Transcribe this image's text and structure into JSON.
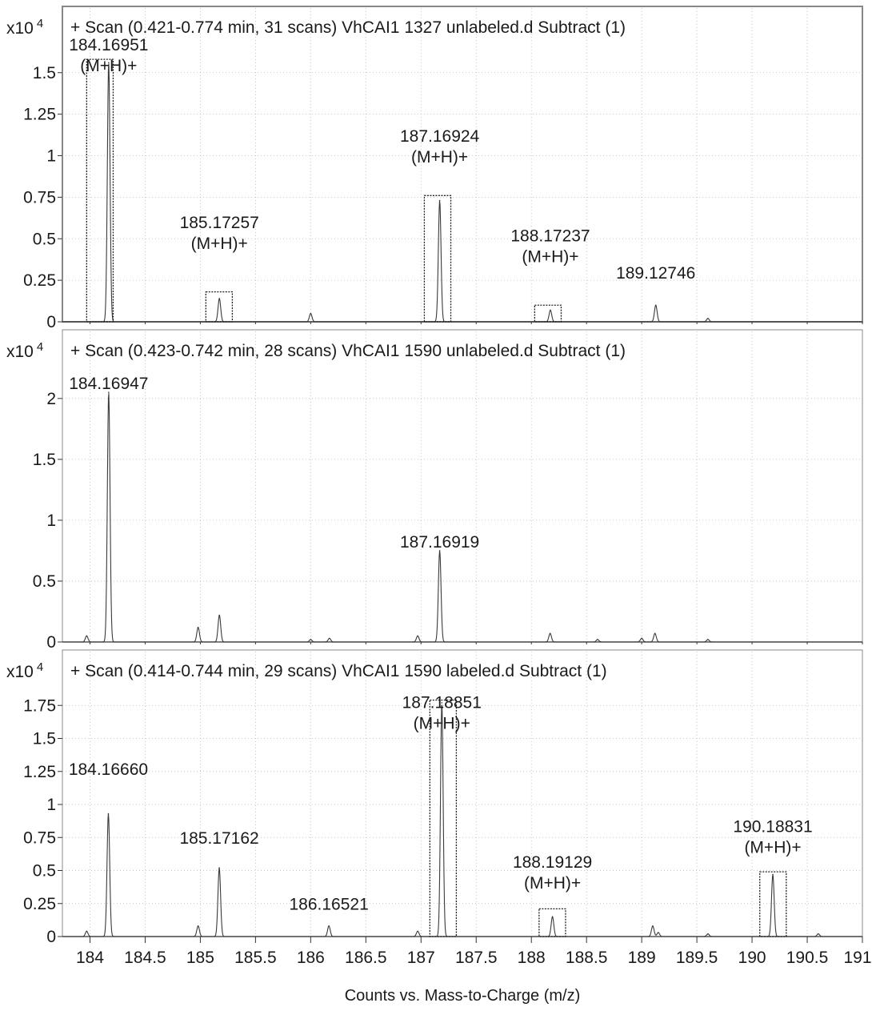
{
  "chart_data": {
    "type": "line",
    "xlabel": "Counts vs. Mass-to-Charge (m/z)",
    "xlim": [
      183.75,
      191.0
    ],
    "x_ticks": [
      184,
      184.5,
      185,
      185.5,
      186,
      186.5,
      187,
      187.5,
      188,
      188.5,
      189,
      189.5,
      190,
      190.5,
      191
    ],
    "x_tick_labels": [
      "184",
      "184.5",
      "185",
      "185.5",
      "186",
      "186.5",
      "187",
      "187.5",
      "188",
      "188.5",
      "189",
      "189.5",
      "190",
      "190.5",
      "191"
    ],
    "grid": true,
    "panels": [
      {
        "scale_label": "x10",
        "scale_exp": "4",
        "title": "+ Scan (0.421-0.774 min, 31 scans) VhCAI1 1327 unlabeled.d  Subtract (1)",
        "ylim": [
          0,
          1.6
        ],
        "y_ticks": [
          0,
          0.25,
          0.5,
          0.75,
          1,
          1.25,
          1.5
        ],
        "y_tick_labels": [
          "0",
          "0.25",
          "0.5",
          "0.75",
          "1",
          "1.25",
          "1.5"
        ],
        "series": [
          {
            "peaks": [
              {
                "x": 184.1695,
                "y": 1.56
              },
              {
                "x": 185.1726,
                "y": 0.14
              },
              {
                "x": 186.0,
                "y": 0.05
              },
              {
                "x": 187.1692,
                "y": 0.73
              },
              {
                "x": 188.1724,
                "y": 0.07
              },
              {
                "x": 189.1275,
                "y": 0.1
              },
              {
                "x": 189.6,
                "y": 0.02
              }
            ]
          }
        ],
        "annotations": [
          {
            "x": 184.1695,
            "y": 1.49,
            "lines": [
              "184.16951",
              "(M+H)+"
            ]
          },
          {
            "x": 185.1726,
            "y": 0.42,
            "lines": [
              "185.17257",
              "(M+H)+"
            ]
          },
          {
            "x": 187.1692,
            "y": 0.94,
            "lines": [
              "187.16924",
              "(M+H)+"
            ]
          },
          {
            "x": 188.1724,
            "y": 0.34,
            "lines": [
              "188.17237",
              "(M+H)+"
            ]
          },
          {
            "x": 189.1275,
            "y": 0.24,
            "lines": [
              "189.12746"
            ]
          }
        ],
        "boxes": [
          {
            "x1": 183.97,
            "x2": 184.21,
            "y": 1.58
          },
          {
            "x1": 185.05,
            "x2": 185.29,
            "y": 0.18
          },
          {
            "x1": 187.03,
            "x2": 187.27,
            "y": 0.76
          },
          {
            "x1": 188.03,
            "x2": 188.27,
            "y": 0.1
          }
        ]
      },
      {
        "scale_label": "x10",
        "scale_exp": "4",
        "title": "+ Scan (0.423-0.742 min, 28 scans) VhCAI1 1590 unlabeled.d  Subtract (1)",
        "ylim": [
          0,
          2.15
        ],
        "y_ticks": [
          0,
          0.5,
          1,
          1.5,
          2
        ],
        "y_tick_labels": [
          "0",
          "0.5",
          "1",
          "1.5",
          "2"
        ],
        "series": [
          {
            "peaks": [
              {
                "x": 183.97,
                "y": 0.05
              },
              {
                "x": 184.1695,
                "y": 2.05
              },
              {
                "x": 184.98,
                "y": 0.12
              },
              {
                "x": 185.1726,
                "y": 0.22
              },
              {
                "x": 186.0,
                "y": 0.02
              },
              {
                "x": 186.17,
                "y": 0.03
              },
              {
                "x": 186.97,
                "y": 0.05
              },
              {
                "x": 187.1692,
                "y": 0.75
              },
              {
                "x": 188.17,
                "y": 0.07
              },
              {
                "x": 188.6,
                "y": 0.02
              },
              {
                "x": 189.0,
                "y": 0.03
              },
              {
                "x": 189.12,
                "y": 0.07
              },
              {
                "x": 189.6,
                "y": 0.02
              }
            ]
          }
        ],
        "annotations": [
          {
            "x": 184.1695,
            "y": 2.05,
            "lines": [
              "184.16947"
            ]
          },
          {
            "x": 187.1692,
            "y": 0.75,
            "lines": [
              "187.16919"
            ]
          }
        ],
        "boxes": []
      },
      {
        "scale_label": "x10",
        "scale_exp": "4",
        "title": "+ Scan (0.414-0.744 min, 29 scans) VhCAI1 1590 labeled.d  Subtract (1)",
        "ylim": [
          0,
          1.8
        ],
        "y_ticks": [
          0,
          0.25,
          0.5,
          0.75,
          1,
          1.25,
          1.5,
          1.75
        ],
        "y_tick_labels": [
          "0",
          "0.25",
          "0.5",
          "0.75",
          "1",
          "1.25",
          "1.5",
          "1.75"
        ],
        "series": [
          {
            "peaks": [
              {
                "x": 183.97,
                "y": 0.04
              },
              {
                "x": 184.1666,
                "y": 0.93
              },
              {
                "x": 184.98,
                "y": 0.08
              },
              {
                "x": 185.1716,
                "y": 0.52
              },
              {
                "x": 186.1652,
                "y": 0.08
              },
              {
                "x": 186.97,
                "y": 0.04
              },
              {
                "x": 187.1885,
                "y": 1.77
              },
              {
                "x": 188.1913,
                "y": 0.15
              },
              {
                "x": 189.1,
                "y": 0.08
              },
              {
                "x": 189.15,
                "y": 0.03
              },
              {
                "x": 189.6,
                "y": 0.02
              },
              {
                "x": 190.1883,
                "y": 0.47
              },
              {
                "x": 190.6,
                "y": 0.02
              }
            ]
          }
        ],
        "annotations": [
          {
            "x": 184.1666,
            "y": 1.2,
            "lines": [
              "184.16660"
            ]
          },
          {
            "x": 185.1716,
            "y": 0.68,
            "lines": [
              "185.17162"
            ]
          },
          {
            "x": 186.1652,
            "y": 0.18,
            "lines": [
              "186.16521"
            ]
          },
          {
            "x": 187.1885,
            "y": 1.55,
            "lines": [
              "187.18851",
              "(M+H)+"
            ]
          },
          {
            "x": 188.1913,
            "y": 0.34,
            "lines": [
              "188.19129",
              "(M+H)+"
            ]
          },
          {
            "x": 190.1883,
            "y": 0.61,
            "lines": [
              "190.18831",
              "(M+H)+"
            ]
          }
        ],
        "boxes": [
          {
            "x1": 187.08,
            "x2": 187.32,
            "y": 1.79
          },
          {
            "x1": 188.07,
            "x2": 188.31,
            "y": 0.21
          },
          {
            "x1": 190.07,
            "x2": 190.31,
            "y": 0.49
          }
        ]
      }
    ]
  }
}
